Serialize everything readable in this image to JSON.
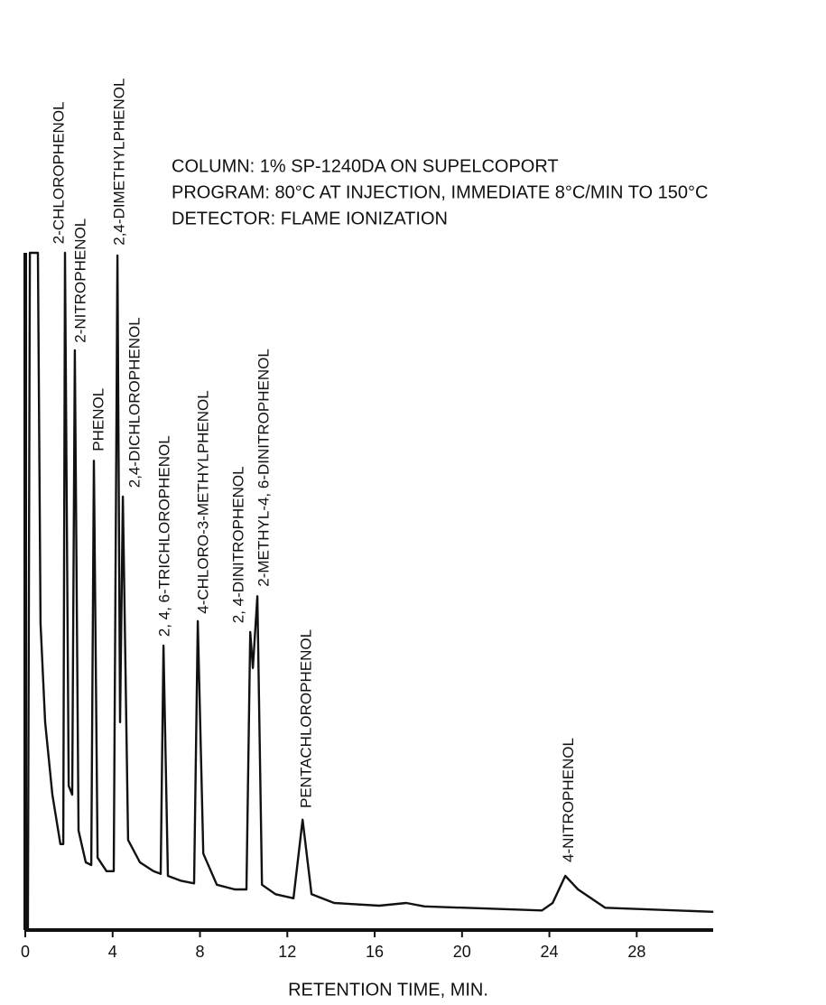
{
  "chart_data": {
    "type": "line",
    "notes": [
      "COLUMN:  1% SP-1240DA ON SUPELCOPORT",
      "PROGRAM: 80°C AT INJECTION, IMMEDIATE 8°C/MIN TO 150°C",
      "DETECTOR:  FLAME IONIZATION"
    ],
    "x_label": "RETENTION TIME, MIN.",
    "color": "#111111",
    "x": [
      0.12,
      0.21,
      0.58,
      0.7,
      0.91,
      1.24,
      1.61,
      1.74,
      1.82,
      1.99,
      2.15,
      2.27,
      2.44,
      2.77,
      3.02,
      3.14,
      3.31,
      3.72,
      4.05,
      4.22,
      4.34,
      4.47,
      4.71,
      5.25,
      5.87,
      6.2,
      6.33,
      6.53,
      7.11,
      7.73,
      7.9,
      8.15,
      8.77,
      9.59,
      10.13,
      10.3,
      10.42,
      10.63,
      10.84,
      11.46,
      12.28,
      12.7,
      13.11,
      14.14,
      16.21,
      17.45,
      18.28,
      23.66,
      24.15,
      24.73,
      25.31,
      26.55,
      31.51
    ],
    "values": [
      0,
      100,
      100,
      45.3,
      30.7,
      20,
      12.7,
      12.7,
      100,
      21.3,
      20,
      85.6,
      14.7,
      10,
      9.6,
      69.3,
      10.7,
      8.7,
      8.7,
      99.6,
      30.7,
      64,
      13.3,
      10,
      8.7,
      8.3,
      42,
      8,
      7.3,
      6.9,
      45.6,
      11.3,
      6.7,
      6,
      6,
      44,
      38.7,
      49.3,
      6.7,
      5.3,
      4.7,
      16.3,
      5.3,
      4,
      3.6,
      4,
      3.5,
      2.9,
      4,
      8,
      6,
      3.3,
      2.7
    ],
    "xlim": [
      0,
      31.5
    ],
    "ylim": [
      0,
      100
    ],
    "xticks": [
      0,
      4,
      8,
      12,
      16,
      20,
      24,
      28
    ],
    "annotations": [
      {
        "text": "2-CHLOROPHENOL",
        "x": 1.57,
        "y": 101.3
      },
      {
        "text": "2-NITROPHENOL",
        "x": 2.56,
        "y": 86.7
      },
      {
        "text": "PHENOL",
        "x": 3.39,
        "y": 70.7
      },
      {
        "text": "2,4-DIMETHYLPHENOL",
        "x": 4.34,
        "y": 101.1
      },
      {
        "text": "2,4-DICHLOROPHENOL",
        "x": 5.05,
        "y": 65.3
      },
      {
        "text": "2, 4, 6-TRICHLOROPHENOL",
        "x": 6.41,
        "y": 43.3
      },
      {
        "text": "4-CHLORO-3-METHYLPHENOL",
        "x": 8.19,
        "y": 46.7
      },
      {
        "text": "2, 4-DINITROPHENOL",
        "x": 9.8,
        "y": 45.3
      },
      {
        "text": "2-METHYL-4, 6-DINITROPHENOL",
        "x": 10.96,
        "y": 50.7
      },
      {
        "text": "PENTACHLOROPHENOL",
        "x": 12.9,
        "y": 18
      },
      {
        "text": "4-NITROPHENOL",
        "x": 24.9,
        "y": 10
      }
    ]
  }
}
